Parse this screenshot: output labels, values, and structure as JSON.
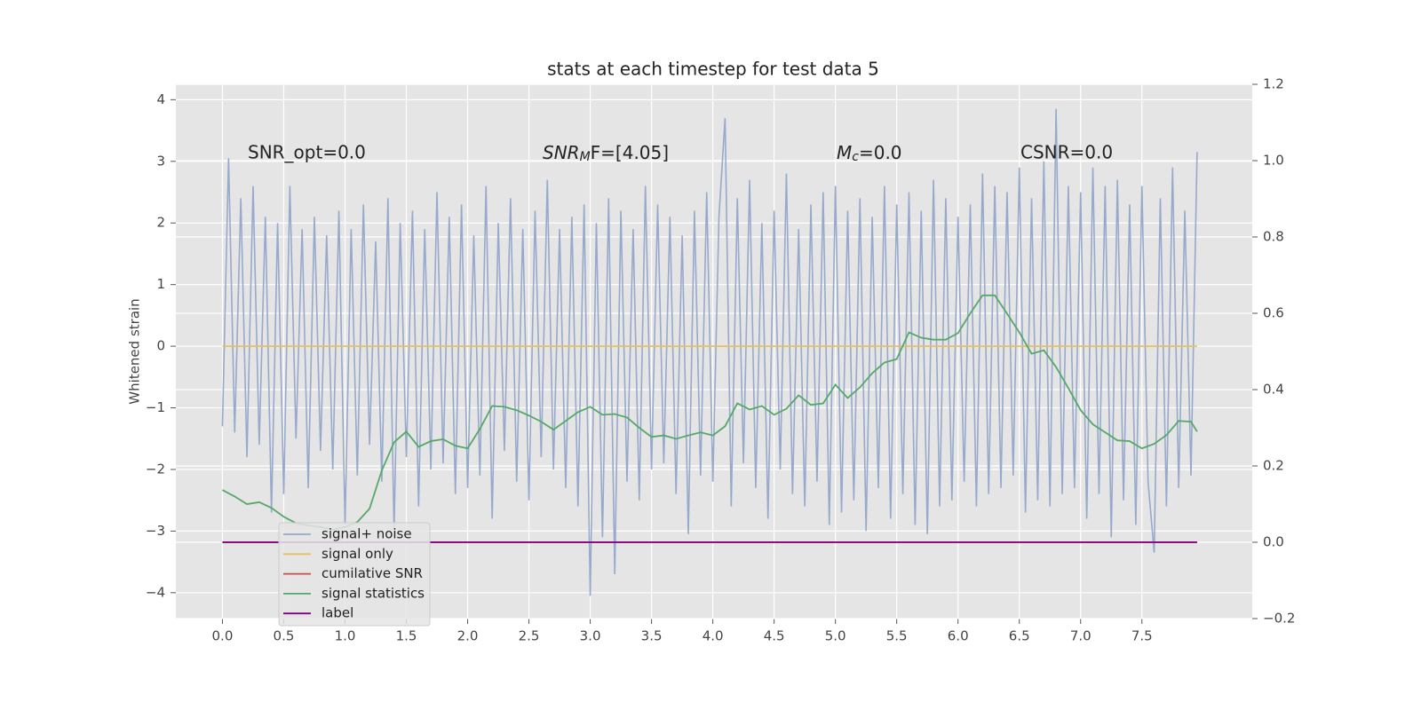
{
  "chart_data": {
    "type": "line",
    "title": "stats at each timestep for test data 5",
    "ylabel": "Whitened strain",
    "xlim": [
      -0.38,
      8.4
    ],
    "ylim": [
      -4.42,
      4.25
    ],
    "y2lim": [
      -0.2,
      1.2
    ],
    "xticks": [
      {
        "value": 0,
        "label": "0.0"
      },
      0.5,
      {
        "value": 1,
        "label": "1.0"
      },
      1.5,
      {
        "value": 2,
        "label": "2.0"
      },
      2.5,
      {
        "value": 3,
        "label": "3.0"
      },
      3.5,
      {
        "value": 4,
        "label": "4.0"
      },
      4.5,
      {
        "value": 5,
        "label": "5.0"
      },
      5.5,
      {
        "value": 6,
        "label": "6.0"
      },
      6.5,
      {
        "value": 7,
        "label": "7.0"
      },
      7.5
    ],
    "yticks": [
      {
        "value": -4,
        "label": "−4"
      },
      {
        "value": -3,
        "label": "−3"
      },
      {
        "value": -2,
        "label": "−2"
      },
      {
        "value": -1,
        "label": "−1"
      },
      0,
      1,
      2,
      3,
      4
    ],
    "y2ticks": [
      {
        "value": -0.2,
        "label": "−0.2"
      },
      {
        "value": 0,
        "label": "0.0"
      },
      0.2,
      0.4,
      0.6,
      0.8,
      {
        "value": 1,
        "label": "1.0"
      },
      1.2
    ],
    "grid": true,
    "legend_loc": "lower left",
    "annotations": [
      {
        "text": "SNR_opt=0.0"
      },
      {
        "parts": [
          "SNR",
          "M",
          "F=[4.05]"
        ]
      },
      {
        "parts": [
          "M",
          "c",
          "=0.0"
        ]
      },
      {
        "text": "CSNR=0.0"
      }
    ],
    "series": [
      {
        "name": "signal+ noise",
        "color": "#97a9cc",
        "axis": "y",
        "x": [
          0,
          0.05,
          0.1,
          0.15,
          0.2,
          0.25,
          0.3,
          0.35,
          0.4,
          0.45,
          0.5,
          0.55,
          0.6,
          0.65,
          0.7,
          0.75,
          0.8,
          0.85,
          0.9,
          0.95,
          1,
          1.05,
          1.1,
          1.15,
          1.2,
          1.25,
          1.3,
          1.35,
          1.4,
          1.45,
          1.5,
          1.55,
          1.6,
          1.65,
          1.7,
          1.75,
          1.8,
          1.85,
          1.9,
          1.95,
          2,
          2.05,
          2.1,
          2.15,
          2.2,
          2.25,
          2.3,
          2.35,
          2.4,
          2.45,
          2.5,
          2.55,
          2.6,
          2.65,
          2.7,
          2.75,
          2.8,
          2.85,
          2.9,
          2.95,
          3,
          3.05,
          3.1,
          3.15,
          3.2,
          3.25,
          3.3,
          3.35,
          3.4,
          3.45,
          3.5,
          3.55,
          3.6,
          3.65,
          3.7,
          3.75,
          3.8,
          3.85,
          3.9,
          3.95,
          4,
          4.05,
          4.1,
          4.15,
          4.2,
          4.25,
          4.3,
          4.35,
          4.4,
          4.45,
          4.5,
          4.55,
          4.6,
          4.65,
          4.7,
          4.75,
          4.8,
          4.85,
          4.9,
          4.95,
          5,
          5.05,
          5.1,
          5.15,
          5.2,
          5.25,
          5.3,
          5.35,
          5.4,
          5.45,
          5.5,
          5.55,
          5.6,
          5.65,
          5.7,
          5.75,
          5.8,
          5.85,
          5.9,
          5.95,
          6,
          6.05,
          6.1,
          6.15,
          6.2,
          6.25,
          6.3,
          6.35,
          6.4,
          6.45,
          6.5,
          6.55,
          6.6,
          6.65,
          6.7,
          6.75,
          6.8,
          6.85,
          6.9,
          6.95,
          7,
          7.05,
          7.1,
          7.15,
          7.2,
          7.25,
          7.3,
          7.35,
          7.4,
          7.45,
          7.5,
          7.55,
          7.6,
          7.65,
          7.7,
          7.75,
          7.8,
          7.85,
          7.9,
          7.95
        ],
        "values": [
          -1.3,
          3.05,
          -1.4,
          2.4,
          -1.8,
          2.6,
          -1.6,
          2.1,
          -2.7,
          2.0,
          -2.4,
          2.6,
          -1.5,
          1.9,
          -2.3,
          2.1,
          -1.7,
          1.8,
          -2.0,
          2.2,
          -2.9,
          1.9,
          -2.1,
          2.3,
          -1.6,
          1.7,
          -2.2,
          2.4,
          -3.0,
          2.0,
          -1.8,
          2.2,
          -2.6,
          1.9,
          -2.0,
          2.5,
          -1.9,
          2.1,
          -2.4,
          2.3,
          -2.3,
          1.8,
          -2.1,
          2.6,
          -2.8,
          2.0,
          -1.7,
          2.4,
          -2.2,
          1.9,
          -2.5,
          2.2,
          -1.8,
          2.7,
          -2.0,
          1.9,
          -2.3,
          2.1,
          -2.6,
          2.3,
          -4.05,
          2.0,
          -3.1,
          2.4,
          -3.7,
          2.2,
          -2.2,
          1.9,
          -2.5,
          2.6,
          -2.0,
          2.3,
          -1.9,
          2.1,
          -2.4,
          1.8,
          -3.05,
          2.2,
          -2.1,
          2.5,
          -2.2,
          2.1,
          3.7,
          -2.6,
          2.4,
          -1.9,
          2.7,
          -2.3,
          2.0,
          -2.8,
          2.2,
          -2.0,
          2.8,
          -2.4,
          1.9,
          -2.6,
          2.3,
          -2.2,
          2.5,
          -2.9,
          2.6,
          -2.7,
          2.2,
          -2.5,
          2.4,
          -3.0,
          2.1,
          -2.3,
          2.6,
          -2.8,
          2.3,
          -2.4,
          2.5,
          -2.9,
          2.2,
          -3.05,
          2.7,
          -2.6,
          2.4,
          -2.5,
          2.1,
          -2.2,
          2.3,
          -2.6,
          2.8,
          -2.4,
          2.6,
          -2.3,
          2.5,
          -2.1,
          2.9,
          -2.7,
          2.4,
          -2.5,
          3.0,
          -2.6,
          3.85,
          -2.4,
          2.6,
          -2.3,
          2.5,
          -2.8,
          2.9,
          -2.4,
          2.6,
          -3.1,
          2.7,
          -2.5,
          2.3,
          -2.9,
          2.6,
          -2.2,
          -3.35,
          2.4,
          -2.6,
          2.9,
          -2.3,
          2.2,
          -2.1,
          3.15
        ]
      },
      {
        "name": "signal only",
        "color": "#e8c060",
        "axis": "y",
        "x": [
          0,
          7.95
        ],
        "values": [
          0,
          0
        ]
      },
      {
        "name": "cumilative SNR",
        "color": "#c44e52",
        "axis": "y2",
        "x": [
          0,
          7.95
        ],
        "values": [
          0,
          0
        ]
      },
      {
        "name": "signal statistics",
        "color": "#55a868",
        "axis": "y2",
        "x": [
          0,
          0.1,
          0.2,
          0.3,
          0.4,
          0.5,
          0.6,
          0.7,
          0.8,
          0.9,
          1,
          1.1,
          1.2,
          1.3,
          1.4,
          1.5,
          1.6,
          1.7,
          1.8,
          1.9,
          2,
          2.1,
          2.2,
          2.3,
          2.4,
          2.5,
          2.6,
          2.7,
          2.8,
          2.9,
          3,
          3.1,
          3.2,
          3.3,
          3.4,
          3.5,
          3.6,
          3.7,
          3.8,
          3.9,
          4,
          4.1,
          4.2,
          4.3,
          4.4,
          4.5,
          4.6,
          4.7,
          4.8,
          4.9,
          5,
          5.1,
          5.2,
          5.3,
          5.4,
          5.5,
          5.6,
          5.7,
          5.8,
          5.9,
          6,
          6.1,
          6.2,
          6.3,
          6.4,
          6.5,
          6.6,
          6.7,
          6.8,
          6.9,
          7,
          7.1,
          7.2,
          7.3,
          7.4,
          7.5,
          7.6,
          7.7,
          7.8,
          7.9,
          7.95
        ],
        "values": [
          0.137,
          0.12,
          0.1,
          0.105,
          0.09,
          0.067,
          0.05,
          0.044,
          0.04,
          0.033,
          0.04,
          0.053,
          0.088,
          0.188,
          0.262,
          0.29,
          0.25,
          0.265,
          0.27,
          0.253,
          0.246,
          0.297,
          0.357,
          0.355,
          0.346,
          0.332,
          0.316,
          0.295,
          0.318,
          0.341,
          0.355,
          0.334,
          0.336,
          0.327,
          0.3,
          0.276,
          0.28,
          0.271,
          0.28,
          0.288,
          0.28,
          0.304,
          0.364,
          0.348,
          0.357,
          0.334,
          0.35,
          0.385,
          0.36,
          0.364,
          0.413,
          0.378,
          0.406,
          0.443,
          0.471,
          0.48,
          0.55,
          0.536,
          0.531,
          0.531,
          0.548,
          0.6,
          0.647,
          0.647,
          0.599,
          0.55,
          0.494,
          0.503,
          0.459,
          0.404,
          0.346,
          0.309,
          0.288,
          0.267,
          0.265,
          0.246,
          0.258,
          0.281,
          0.318,
          0.316,
          0.29
        ]
      },
      {
        "name": "label",
        "color": "#800080",
        "axis": "y2",
        "x": [
          0,
          7.95
        ],
        "values": [
          0,
          0
        ]
      }
    ]
  }
}
